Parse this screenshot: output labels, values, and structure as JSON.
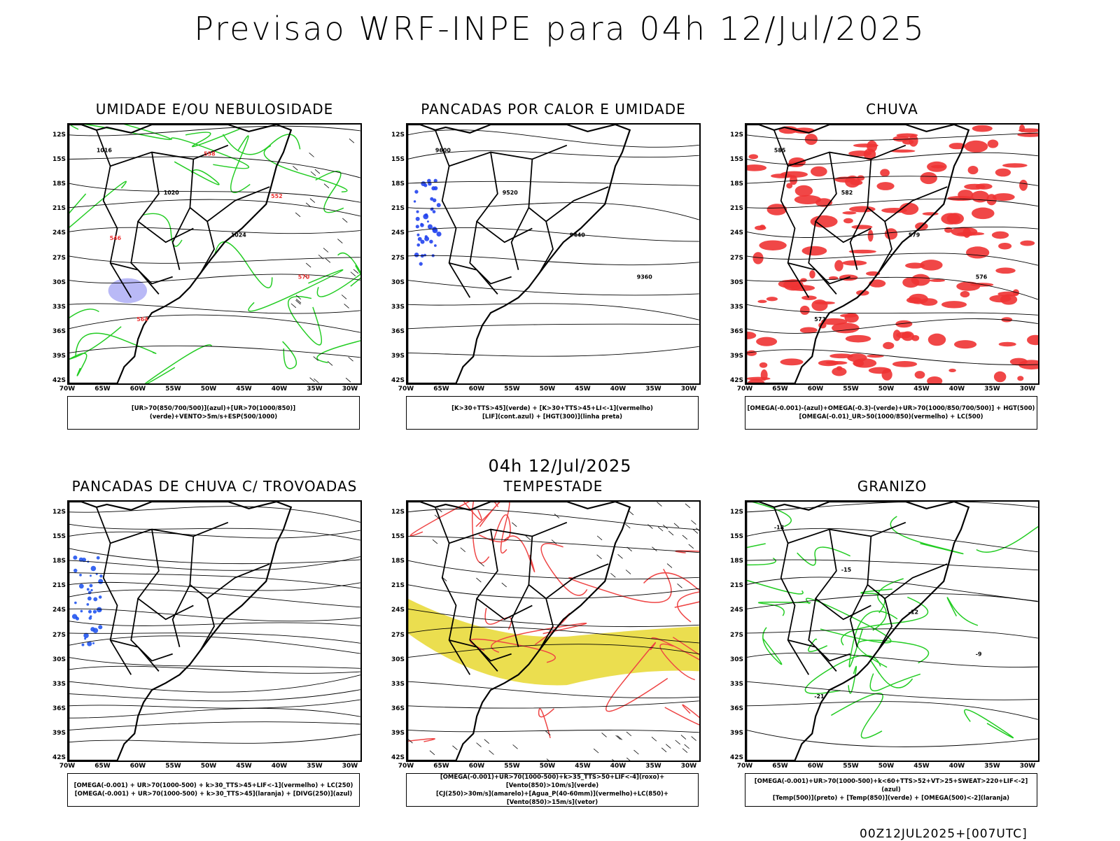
{
  "title": "Previsao WRF-INPE  para 04h 12/Jul/2025",
  "subtitle": "04h 12/Jul/2025",
  "footer": "00Z12JUL2025+[007UTC]",
  "lat_labels": [
    "12S",
    "15S",
    "18S",
    "21S",
    "24S",
    "27S",
    "30S",
    "33S",
    "36S",
    "39S",
    "42S"
  ],
  "lon_labels": [
    "70W",
    "65W",
    "60W",
    "55W",
    "50W",
    "45W",
    "40W",
    "35W",
    "30W"
  ],
  "panels": [
    {
      "title": "UMIDADE E/OU NEBULOSIDADE",
      "legend": [
        "[UR>70(850/700/500)](azul)+[UR>70(1000/850)](verde)+VENTO>5m/s+ESP(500/1000)"
      ],
      "accent": "#22cc22",
      "contours": [
        "1016",
        "1020",
        "1024",
        "570",
        "564",
        "558",
        "552",
        "546"
      ]
    },
    {
      "title": "PANCADAS POR CALOR E UMIDADE",
      "legend": [
        "[K>30+TTS>45](verde) + [K>30+TTS>45+LI<-1](vermelho)",
        "[LIF](cont.azul) + [HGT(300)](linha preta)"
      ],
      "accent": "#2244ee",
      "contours": [
        "9600",
        "9520",
        "9440",
        "9360"
      ]
    },
    {
      "title": "CHUVA",
      "legend": [
        "[OMEGA(-0.001)-(azul)+OMEGA(-0.3)-(verde)+UR>70(1000/850/700/500)] + HGT(500)",
        "[OMEGA(-0.01)_UR>50(1000/850)(vermelho) + LC(500)"
      ],
      "accent": "#ee3333",
      "contours": [
        "585",
        "582",
        "579",
        "576",
        "573"
      ]
    },
    {
      "title": "PANCADAS DE CHUVA C/ TROVOADAS",
      "legend": [
        "[OMEGA(-0.001) + UR>70(1000-500) + k>30_TTS>45+LIF<-1](vermelho) + LC(250)",
        "[OMEGA(-0.001) + UR>70(1000-500) + k>30_TTS>45](laranja) + [DIVG(250)](azul)"
      ],
      "accent": "#2255ee",
      "contours": []
    },
    {
      "title": "TEMPESTADE",
      "legend": [
        "[OMEGA(-0.001)+UR>70(1000-500)+k>35_TTS>50+LIF<-4](roxo)+[Vento(850)>10m/s](verde)",
        "[CJ(250)>30m/s](amarelo)+[Agua_P(40-60mm)](vermelho)+LC(850)+[Vento(850)>15m/s](vetor)"
      ],
      "accent": "#e8d830",
      "contours": []
    },
    {
      "title": "GRANIZO",
      "legend": [
        "[OMEGA(-0.001)+UR>70(1000-500)+k<60+TTS>52+VT>25+SWEAT>220+LIF<-2](azul)",
        "[Temp(500)](preto) + [Temp(850)](verde) + [OMEGA(500)<-2](laranja)"
      ],
      "accent": "#22cc22",
      "contours": [
        "-18",
        "-15",
        "-12",
        "-9",
        "-21"
      ]
    }
  ]
}
